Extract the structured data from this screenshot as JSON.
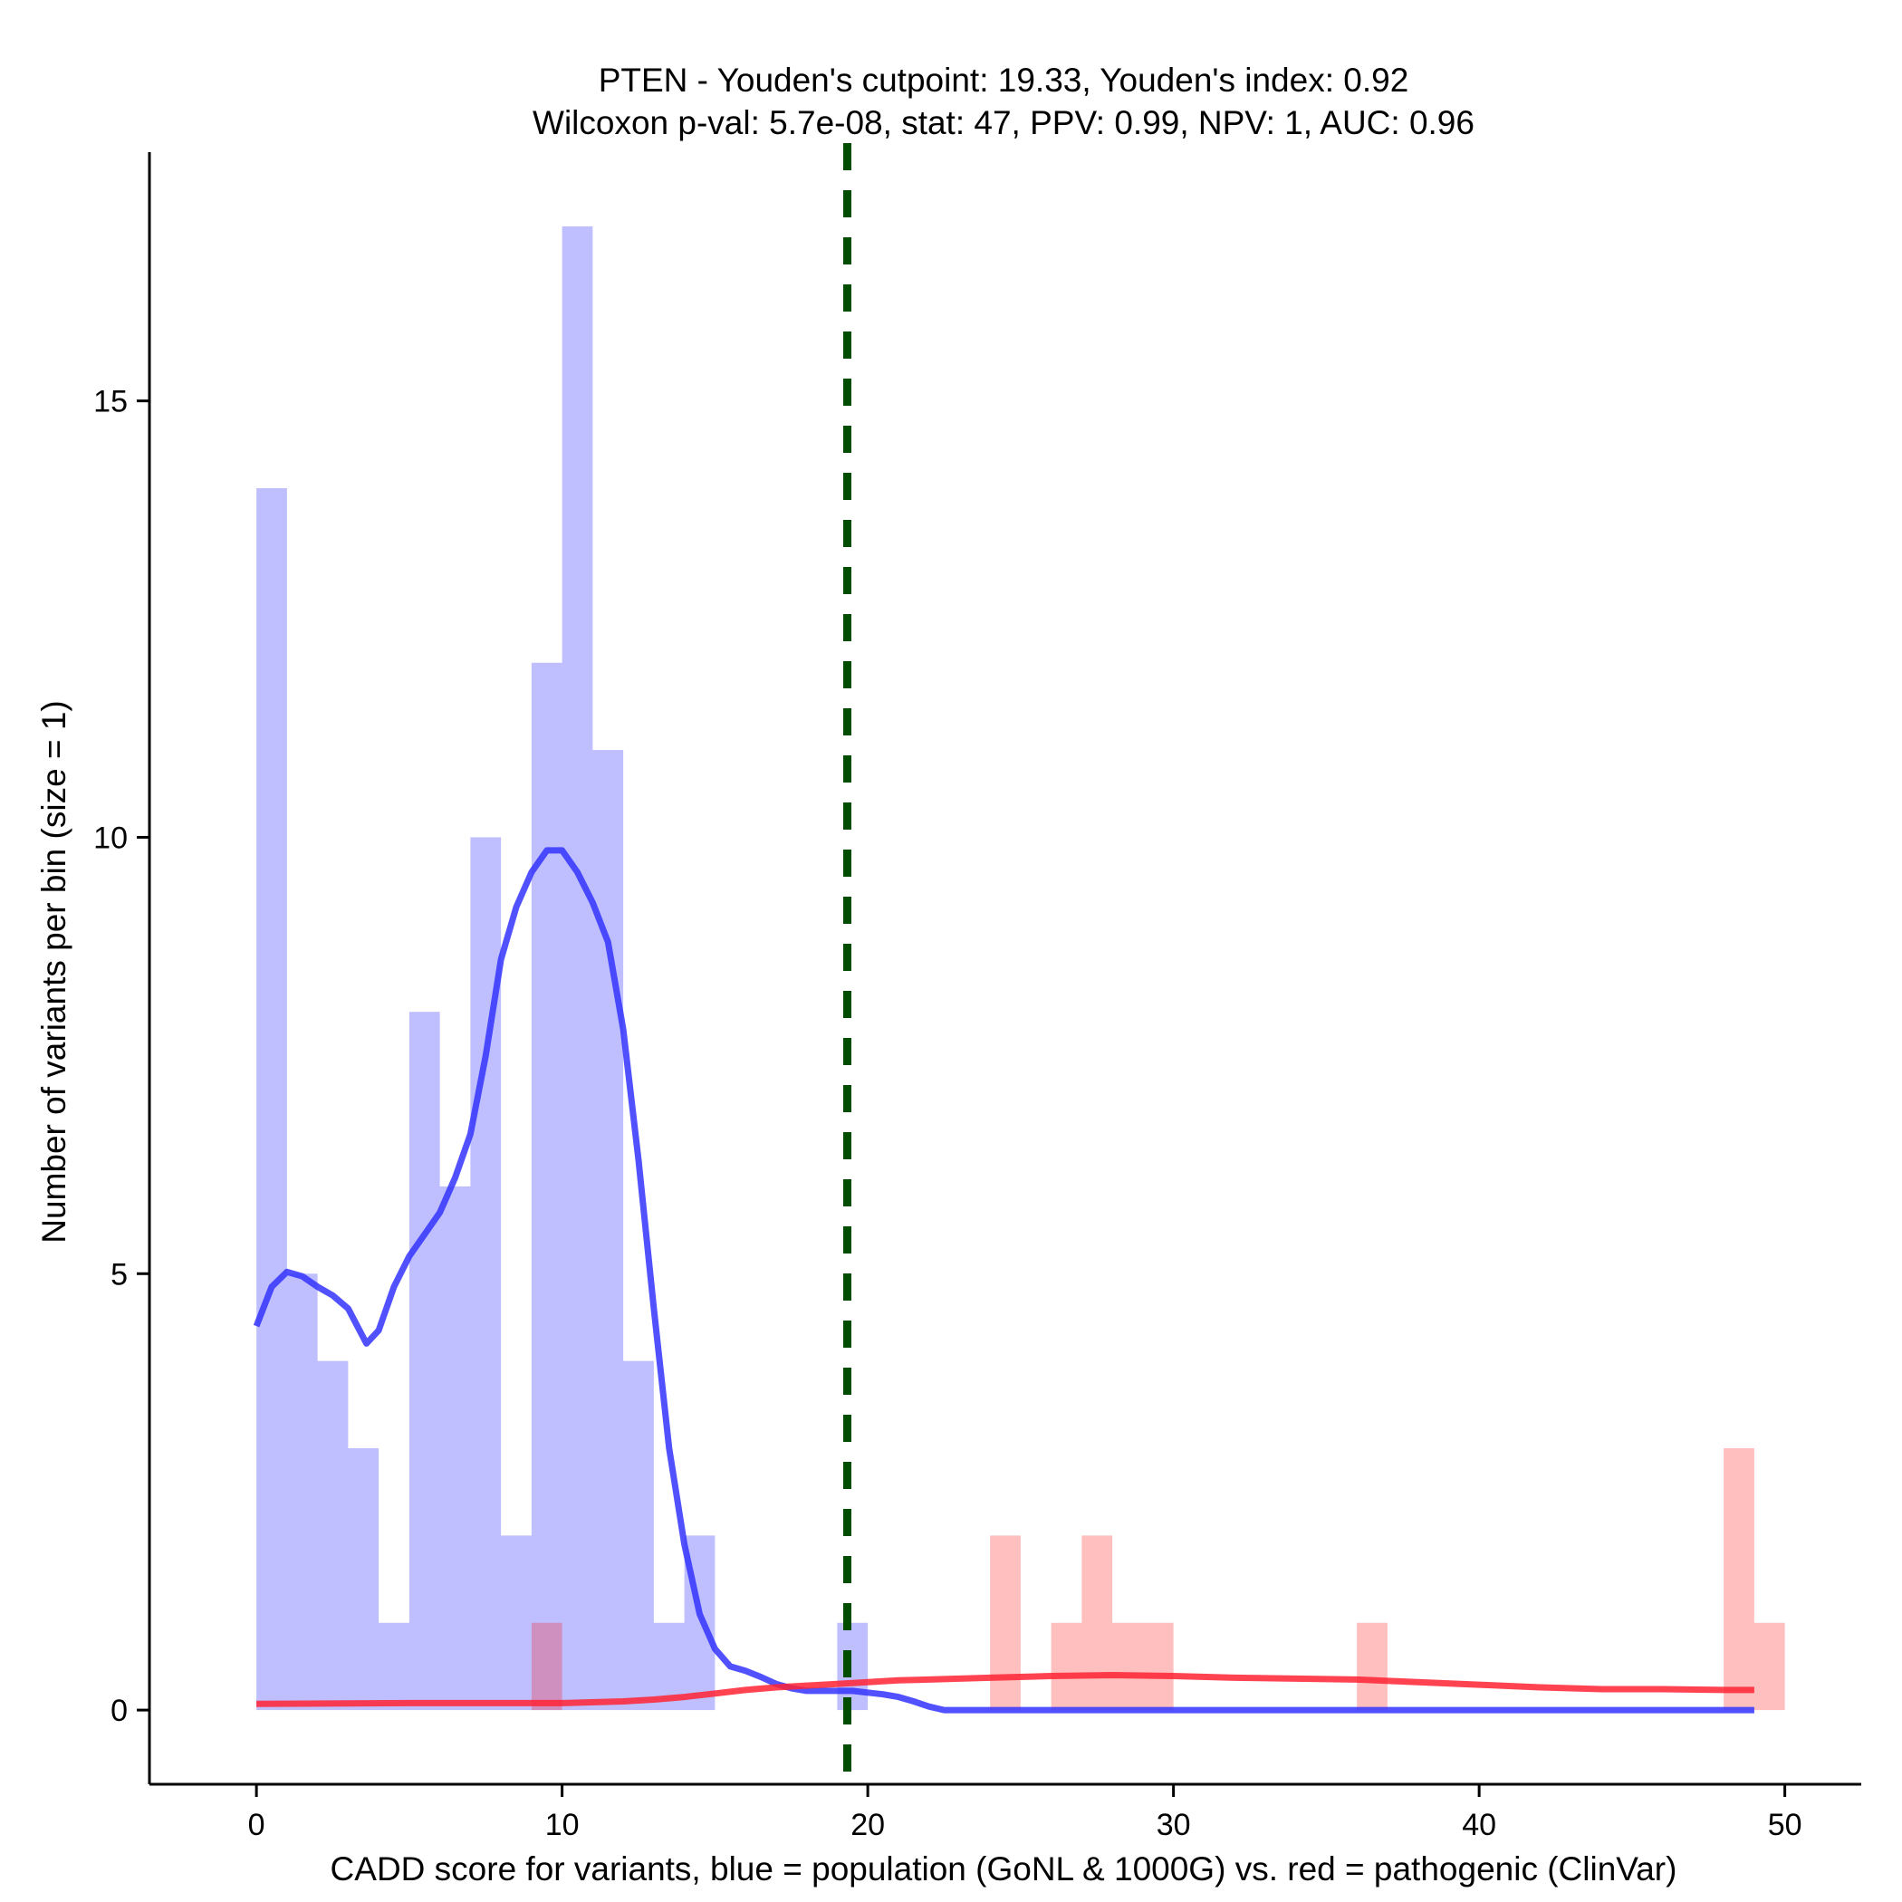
{
  "chart_data": {
    "type": "bar",
    "title_line1": "PTEN - Youden's cutpoint: 19.33, Youden's index: 0.92",
    "title_line2": "Wilcoxon p-val: 5.7e-08, stat: 47, PPV: 0.99, NPV: 1, AUC: 0.96",
    "xlabel": "CADD score for variants, blue = population (GoNL & 1000G) vs. red = pathogenic (ClinVar)",
    "ylabel": "Number of variants per bin (size = 1)",
    "xlim": [
      -3.5,
      52.5
    ],
    "ylim": [
      -0.85,
      17.85
    ],
    "xticks": [
      "0",
      "10",
      "20",
      "30",
      "40",
      "50"
    ],
    "yticks": [
      "0",
      "5",
      "10",
      "15"
    ],
    "bin_size": 1,
    "cutpoint": 19.33,
    "series": [
      {
        "name": "population (GoNL & 1000G)",
        "color": "#0000ff",
        "bin_starts": [
          0,
          1,
          2,
          3,
          4,
          5,
          6,
          7,
          8,
          9,
          10,
          11,
          12,
          13,
          14,
          19
        ],
        "counts": [
          14,
          5,
          4,
          3,
          1,
          8,
          6,
          10,
          2,
          12,
          17,
          11,
          4,
          1,
          2,
          1
        ]
      },
      {
        "name": "pathogenic (ClinVar)",
        "color": "#ff0000",
        "bin_starts": [
          9,
          24,
          26,
          27,
          28,
          29,
          36,
          48,
          49
        ],
        "counts": [
          1,
          2,
          1,
          2,
          1,
          1,
          1,
          3,
          1
        ]
      }
    ],
    "density_curves": [
      {
        "name": "population density",
        "color": "#3333ff",
        "points": [
          [
            0,
            4.4
          ],
          [
            0.5,
            4.85
          ],
          [
            1,
            5.02
          ],
          [
            1.5,
            4.97
          ],
          [
            2,
            4.85
          ],
          [
            2.5,
            4.75
          ],
          [
            3,
            4.6
          ],
          [
            3.3,
            4.4
          ],
          [
            3.6,
            4.2
          ],
          [
            4,
            4.35
          ],
          [
            4.5,
            4.85
          ],
          [
            5,
            5.2
          ],
          [
            5.5,
            5.45
          ],
          [
            6,
            5.7
          ],
          [
            6.5,
            6.1
          ],
          [
            7,
            6.6
          ],
          [
            7.5,
            7.5
          ],
          [
            8,
            8.6
          ],
          [
            8.5,
            9.2
          ],
          [
            9,
            9.6
          ],
          [
            9.5,
            9.85
          ],
          [
            10,
            9.85
          ],
          [
            10.5,
            9.6
          ],
          [
            11,
            9.25
          ],
          [
            11.5,
            8.8
          ],
          [
            12,
            7.8
          ],
          [
            12.5,
            6.3
          ],
          [
            13,
            4.6
          ],
          [
            13.5,
            3.0
          ],
          [
            14,
            1.9
          ],
          [
            14.5,
            1.1
          ],
          [
            15,
            0.7
          ],
          [
            15.5,
            0.5
          ],
          [
            16,
            0.45
          ],
          [
            16.5,
            0.38
          ],
          [
            17,
            0.3
          ],
          [
            17.5,
            0.25
          ],
          [
            18,
            0.22
          ],
          [
            18.5,
            0.22
          ],
          [
            19,
            0.22
          ],
          [
            19.5,
            0.22
          ],
          [
            20,
            0.2
          ],
          [
            20.5,
            0.18
          ],
          [
            21,
            0.15
          ],
          [
            21.5,
            0.1
          ],
          [
            22,
            0.04
          ],
          [
            22.5,
            0.0
          ],
          [
            23,
            0.0
          ],
          [
            49,
            0.0
          ]
        ]
      },
      {
        "name": "pathogenic density",
        "color": "#ff2233",
        "points": [
          [
            0,
            0.07
          ],
          [
            5,
            0.08
          ],
          [
            9,
            0.08
          ],
          [
            10,
            0.08
          ],
          [
            12,
            0.1
          ],
          [
            13,
            0.12
          ],
          [
            14,
            0.15
          ],
          [
            15,
            0.19
          ],
          [
            16,
            0.23
          ],
          [
            17,
            0.26
          ],
          [
            18,
            0.28
          ],
          [
            19,
            0.3
          ],
          [
            20,
            0.32
          ],
          [
            21,
            0.34
          ],
          [
            22,
            0.35
          ],
          [
            23,
            0.36
          ],
          [
            24,
            0.37
          ],
          [
            26,
            0.39
          ],
          [
            28,
            0.4
          ],
          [
            30,
            0.39
          ],
          [
            32,
            0.37
          ],
          [
            34,
            0.36
          ],
          [
            36,
            0.35
          ],
          [
            38,
            0.32
          ],
          [
            40,
            0.29
          ],
          [
            42,
            0.26
          ],
          [
            44,
            0.24
          ],
          [
            46,
            0.24
          ],
          [
            48,
            0.23
          ],
          [
            49,
            0.23
          ]
        ]
      }
    ]
  }
}
